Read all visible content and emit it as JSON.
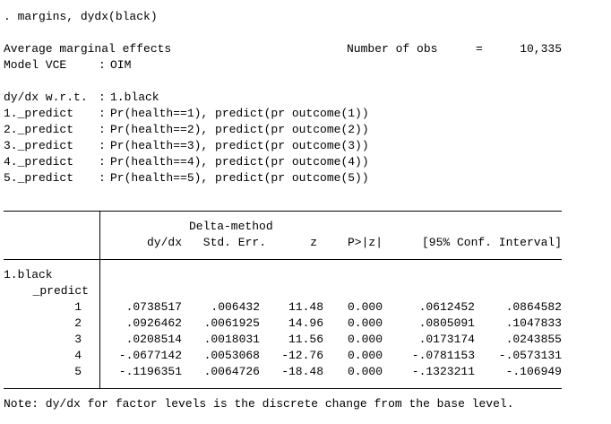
{
  "command": ". margins, dydx(black)",
  "header": {
    "title": "Average marginal effects",
    "obs_label": "Number of obs",
    "obs_eq": "=",
    "obs_value": "10,335",
    "vce_label": "Model VCE",
    "vce_sep": ":",
    "vce_value": "OIM"
  },
  "wrt": {
    "label": "dy/dx w.r.t.",
    "sep": ":",
    "value": "1.black"
  },
  "predicts": [
    {
      "label": "1._predict",
      "sep": ":",
      "value": "Pr(health==1), predict(pr outcome(1))"
    },
    {
      "label": "2._predict",
      "sep": ":",
      "value": "Pr(health==2), predict(pr outcome(2))"
    },
    {
      "label": "3._predict",
      "sep": ":",
      "value": "Pr(health==3), predict(pr outcome(3))"
    },
    {
      "label": "4._predict",
      "sep": ":",
      "value": "Pr(health==4), predict(pr outcome(4))"
    },
    {
      "label": "5._predict",
      "sep": ":",
      "value": "Pr(health==5), predict(pr outcome(5))"
    }
  ],
  "table": {
    "header_top": "Delta-method",
    "columns": [
      "dy/dx",
      "Std. Err.",
      "z",
      "P>|z|",
      "[95% Conf. Interval]"
    ],
    "group": "1.black",
    "subgroup": "_predict",
    "rows": [
      [
        "1",
        ".0738517",
        ".006432",
        "11.48",
        "0.000",
        ".0612452",
        ".0864582"
      ],
      [
        "2",
        ".0926462",
        ".0061925",
        "14.96",
        "0.000",
        ".0805091",
        ".1047833"
      ],
      [
        "3",
        ".0208514",
        ".0018031",
        "11.56",
        "0.000",
        ".0173174",
        ".0243855"
      ],
      [
        "4",
        "-.0677142",
        ".0053068",
        "-12.76",
        "0.000",
        "-.0781153",
        "-.0573131"
      ],
      [
        "5",
        "-.1196351",
        ".0064726",
        "-18.48",
        "0.000",
        "-.1323211",
        "-.106949"
      ]
    ]
  },
  "note": "Note: dy/dx for factor levels is the discrete change from the base level."
}
